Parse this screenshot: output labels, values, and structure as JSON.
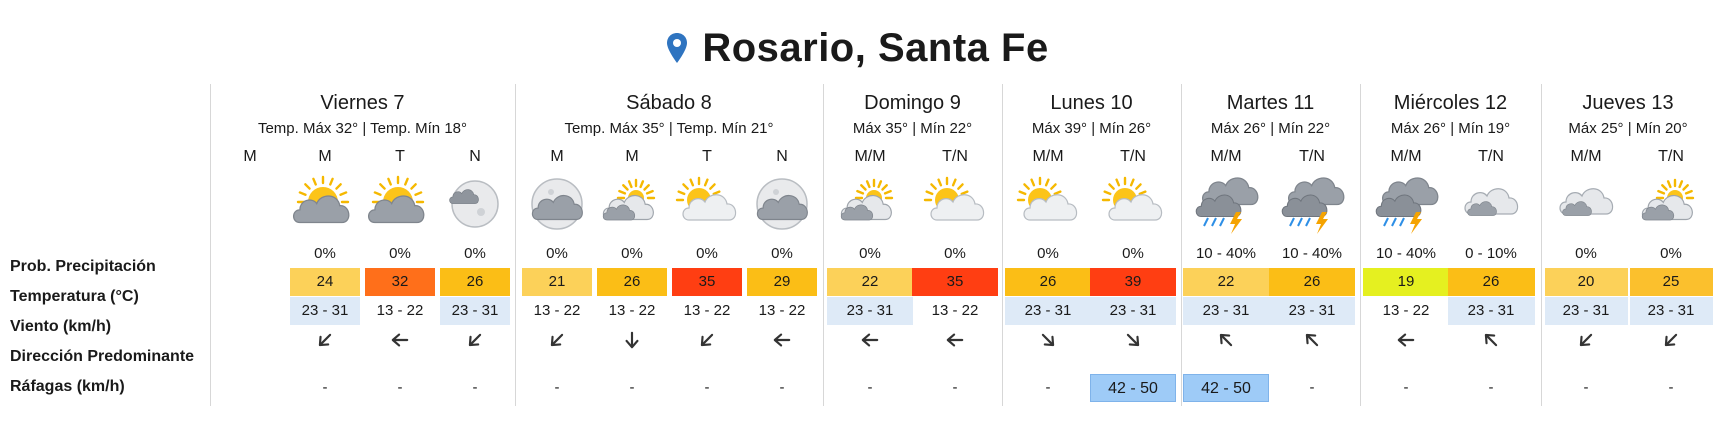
{
  "title": "Rosario, Santa Fe",
  "colors": {
    "t19": "#e5f020",
    "t20": "#fcd159",
    "t21": "#fcd159",
    "t22": "#fcd159",
    "t24": "#fcd159",
    "t25": "#fbc02d",
    "t26": "#fbbe16",
    "t29": "#fbbe16",
    "t32": "#ff6f1a",
    "t35": "#ff3e12",
    "t39": "#ff3e12",
    "wind_blue": "#deeaf7",
    "gust_blue": "#9ecbf7",
    "pin": "#2f74c0"
  },
  "row_labels": {
    "prob": "Prob. Precipitación",
    "temp": "Temperatura (°C)",
    "wind": "Viento (km/h)",
    "dir": "Dirección Predominante",
    "gust": "Ráfagas (km/h)"
  },
  "days": [
    {
      "name": "Viernes 7",
      "temps": "Temp. Máx 32° | Temp. Mín 18°",
      "periods": [
        {
          "label": "M",
          "icon": "",
          "prob": "",
          "temp": "",
          "tcolor": "",
          "wind": "",
          "wblue": false,
          "dir": "",
          "gust": ""
        },
        {
          "label": "M",
          "icon": "sun-cloud",
          "prob": "0%",
          "temp": "24",
          "tcolor": "#fcd159",
          "wind": "23 - 31",
          "wblue": true,
          "dir": "sw",
          "gust": "-"
        },
        {
          "label": "T",
          "icon": "sun-cloud",
          "prob": "0%",
          "temp": "32",
          "tcolor": "#ff6f1a",
          "wind": "13 - 22",
          "wblue": false,
          "dir": "w",
          "gust": "-"
        },
        {
          "label": "N",
          "icon": "moon-cloud",
          "prob": "0%",
          "temp": "26",
          "tcolor": "#fbbe16",
          "wind": "23 - 31",
          "wblue": true,
          "dir": "sw",
          "gust": "-"
        }
      ]
    },
    {
      "name": "Sábado 8",
      "temps": "Temp. Máx 35° | Temp. Mín 21°",
      "periods": [
        {
          "label": "M",
          "icon": "moon-cloud-big",
          "prob": "0%",
          "temp": "21",
          "tcolor": "#fcd159",
          "wind": "13 - 22",
          "wblue": false,
          "dir": "sw",
          "gust": "-"
        },
        {
          "label": "M",
          "icon": "cloud-sun-small",
          "prob": "0%",
          "temp": "26",
          "tcolor": "#fbbe16",
          "wind": "13 - 22",
          "wblue": false,
          "dir": "s",
          "gust": "-"
        },
        {
          "label": "T",
          "icon": "sun-cloud-light",
          "prob": "0%",
          "temp": "35",
          "tcolor": "#ff3e12",
          "wind": "13 - 22",
          "wblue": false,
          "dir": "sw",
          "gust": "-"
        },
        {
          "label": "N",
          "icon": "moon-cloud-big",
          "prob": "0%",
          "temp": "29",
          "tcolor": "#fbbe16",
          "wind": "13 - 22",
          "wblue": false,
          "dir": "w",
          "gust": "-"
        }
      ]
    },
    {
      "name": "Domingo 9",
      "temps": "Máx 35° | Mín 22°",
      "periods": [
        {
          "label": "M/M",
          "icon": "cloud-sun-small",
          "prob": "0%",
          "temp": "22",
          "tcolor": "#fcd159",
          "wind": "23 - 31",
          "wblue": true,
          "dir": "w",
          "gust": "-"
        },
        {
          "label": "T/N",
          "icon": "sun-cloud-light",
          "prob": "0%",
          "temp": "35",
          "tcolor": "#ff3e12",
          "wind": "13 - 22",
          "wblue": false,
          "dir": "w",
          "gust": "-"
        }
      ]
    },
    {
      "name": "Lunes 10",
      "temps": "Máx 39° | Mín 26°",
      "periods": [
        {
          "label": "M/M",
          "icon": "sun-cloud-light",
          "prob": "0%",
          "temp": "26",
          "tcolor": "#fbbe16",
          "wind": "23 - 31",
          "wblue": true,
          "dir": "se",
          "gust": "-"
        },
        {
          "label": "T/N",
          "icon": "sun-cloud-light",
          "prob": "0%",
          "temp": "39",
          "tcolor": "#ff3e12",
          "wind": "23 - 31",
          "wblue": true,
          "dir": "se",
          "gust": "42 - 50"
        }
      ]
    },
    {
      "name": "Martes 11",
      "temps": "Máx 26° | Mín 22°",
      "periods": [
        {
          "label": "M/M",
          "icon": "storm",
          "prob": "10 - 40%",
          "temp": "22",
          "tcolor": "#fcd159",
          "wind": "23 - 31",
          "wblue": true,
          "dir": "nw",
          "gust": "42 - 50"
        },
        {
          "label": "T/N",
          "icon": "storm",
          "prob": "10 - 40%",
          "temp": "26",
          "tcolor": "#fbbe16",
          "wind": "23 - 31",
          "wblue": true,
          "dir": "nw",
          "gust": "-"
        }
      ]
    },
    {
      "name": "Miércoles 12",
      "temps": "Máx 26° | Mín 19°",
      "periods": [
        {
          "label": "M/M",
          "icon": "storm",
          "prob": "10 - 40%",
          "temp": "19",
          "tcolor": "#e5f020",
          "wind": "13 - 22",
          "wblue": false,
          "dir": "w",
          "gust": "-"
        },
        {
          "label": "T/N",
          "icon": "cloud",
          "prob": "0 - 10%",
          "temp": "26",
          "tcolor": "#fbbe16",
          "wind": "23 - 31",
          "wblue": true,
          "dir": "nw",
          "gust": "-"
        }
      ]
    },
    {
      "name": "Jueves 13",
      "temps": "Máx 25° | Mín 20°",
      "periods": [
        {
          "label": "M/M",
          "icon": "cloud",
          "prob": "0%",
          "temp": "20",
          "tcolor": "#fcd159",
          "wind": "23 - 31",
          "wblue": true,
          "dir": "sw",
          "gust": "-"
        },
        {
          "label": "T/N",
          "icon": "cloud-sun-small",
          "prob": "0%",
          "temp": "25",
          "tcolor": "#fbc02d",
          "wind": "23 - 31",
          "wblue": true,
          "dir": "sw",
          "gust": "-"
        }
      ]
    }
  ]
}
